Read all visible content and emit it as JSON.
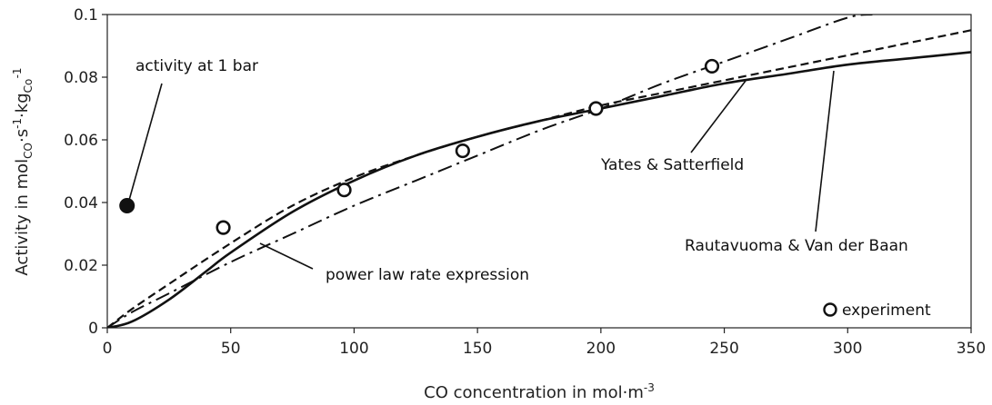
{
  "chart_data": {
    "type": "line",
    "xlabel": "CO concentration in mol·m",
    "xlabel_sup": "-3",
    "ylabel": {
      "prefix": "Activity in mol",
      "sub1": "CO",
      "mid1": "·s",
      "sup1": "-1",
      "mid2": "·kg",
      "sub2": "Co",
      "sup2": "-1"
    },
    "xlim": [
      0,
      350
    ],
    "ylim": [
      0,
      0.1
    ],
    "xticks": [
      "0",
      "50",
      "100",
      "150",
      "200",
      "250",
      "300",
      "350"
    ],
    "yticks": [
      "0",
      "0.02",
      "0.04",
      "0.06",
      "0.08",
      "0.1"
    ],
    "grid": false,
    "series": [
      {
        "name": "Yates & Satterfield",
        "style": "dashed",
        "x": [
          0,
          10,
          25,
          50,
          75,
          100,
          125,
          150,
          175,
          200,
          225,
          250,
          275,
          300,
          325,
          350
        ],
        "y": [
          0,
          0.006,
          0.014,
          0.027,
          0.039,
          0.048,
          0.055,
          0.061,
          0.066,
          0.071,
          0.075,
          0.079,
          0.083,
          0.087,
          0.091,
          0.095
        ]
      },
      {
        "name": "Rautavuoma & Van der Baan",
        "style": "solid",
        "x": [
          0,
          10,
          25,
          40,
          50,
          75,
          100,
          125,
          150,
          175,
          200,
          225,
          250,
          275,
          300,
          325,
          350
        ],
        "y": [
          0,
          0.002,
          0.009,
          0.018,
          0.024,
          0.037,
          0.047,
          0.055,
          0.061,
          0.066,
          0.07,
          0.074,
          0.078,
          0.081,
          0.084,
          0.086,
          0.088
        ]
      },
      {
        "name": "power law rate expression",
        "style": "dashdot",
        "x": [
          0,
          10,
          25,
          50,
          75,
          100,
          125,
          150,
          175,
          200,
          225,
          250,
          275,
          300,
          310
        ],
        "y": [
          0,
          0.005,
          0.011,
          0.021,
          0.03,
          0.039,
          0.047,
          0.055,
          0.063,
          0.07,
          0.078,
          0.085,
          0.092,
          0.099,
          0.1
        ]
      }
    ],
    "experiment": {
      "name": "experiment",
      "x": [
        47,
        96,
        144,
        198,
        245
      ],
      "y": [
        0.032,
        0.044,
        0.0565,
        0.07,
        0.0835
      ]
    },
    "one_bar": {
      "label": "activity at 1 bar",
      "x": 8,
      "y": 0.039
    },
    "legend_label": "experiment",
    "legend_position": "bottom-right"
  }
}
